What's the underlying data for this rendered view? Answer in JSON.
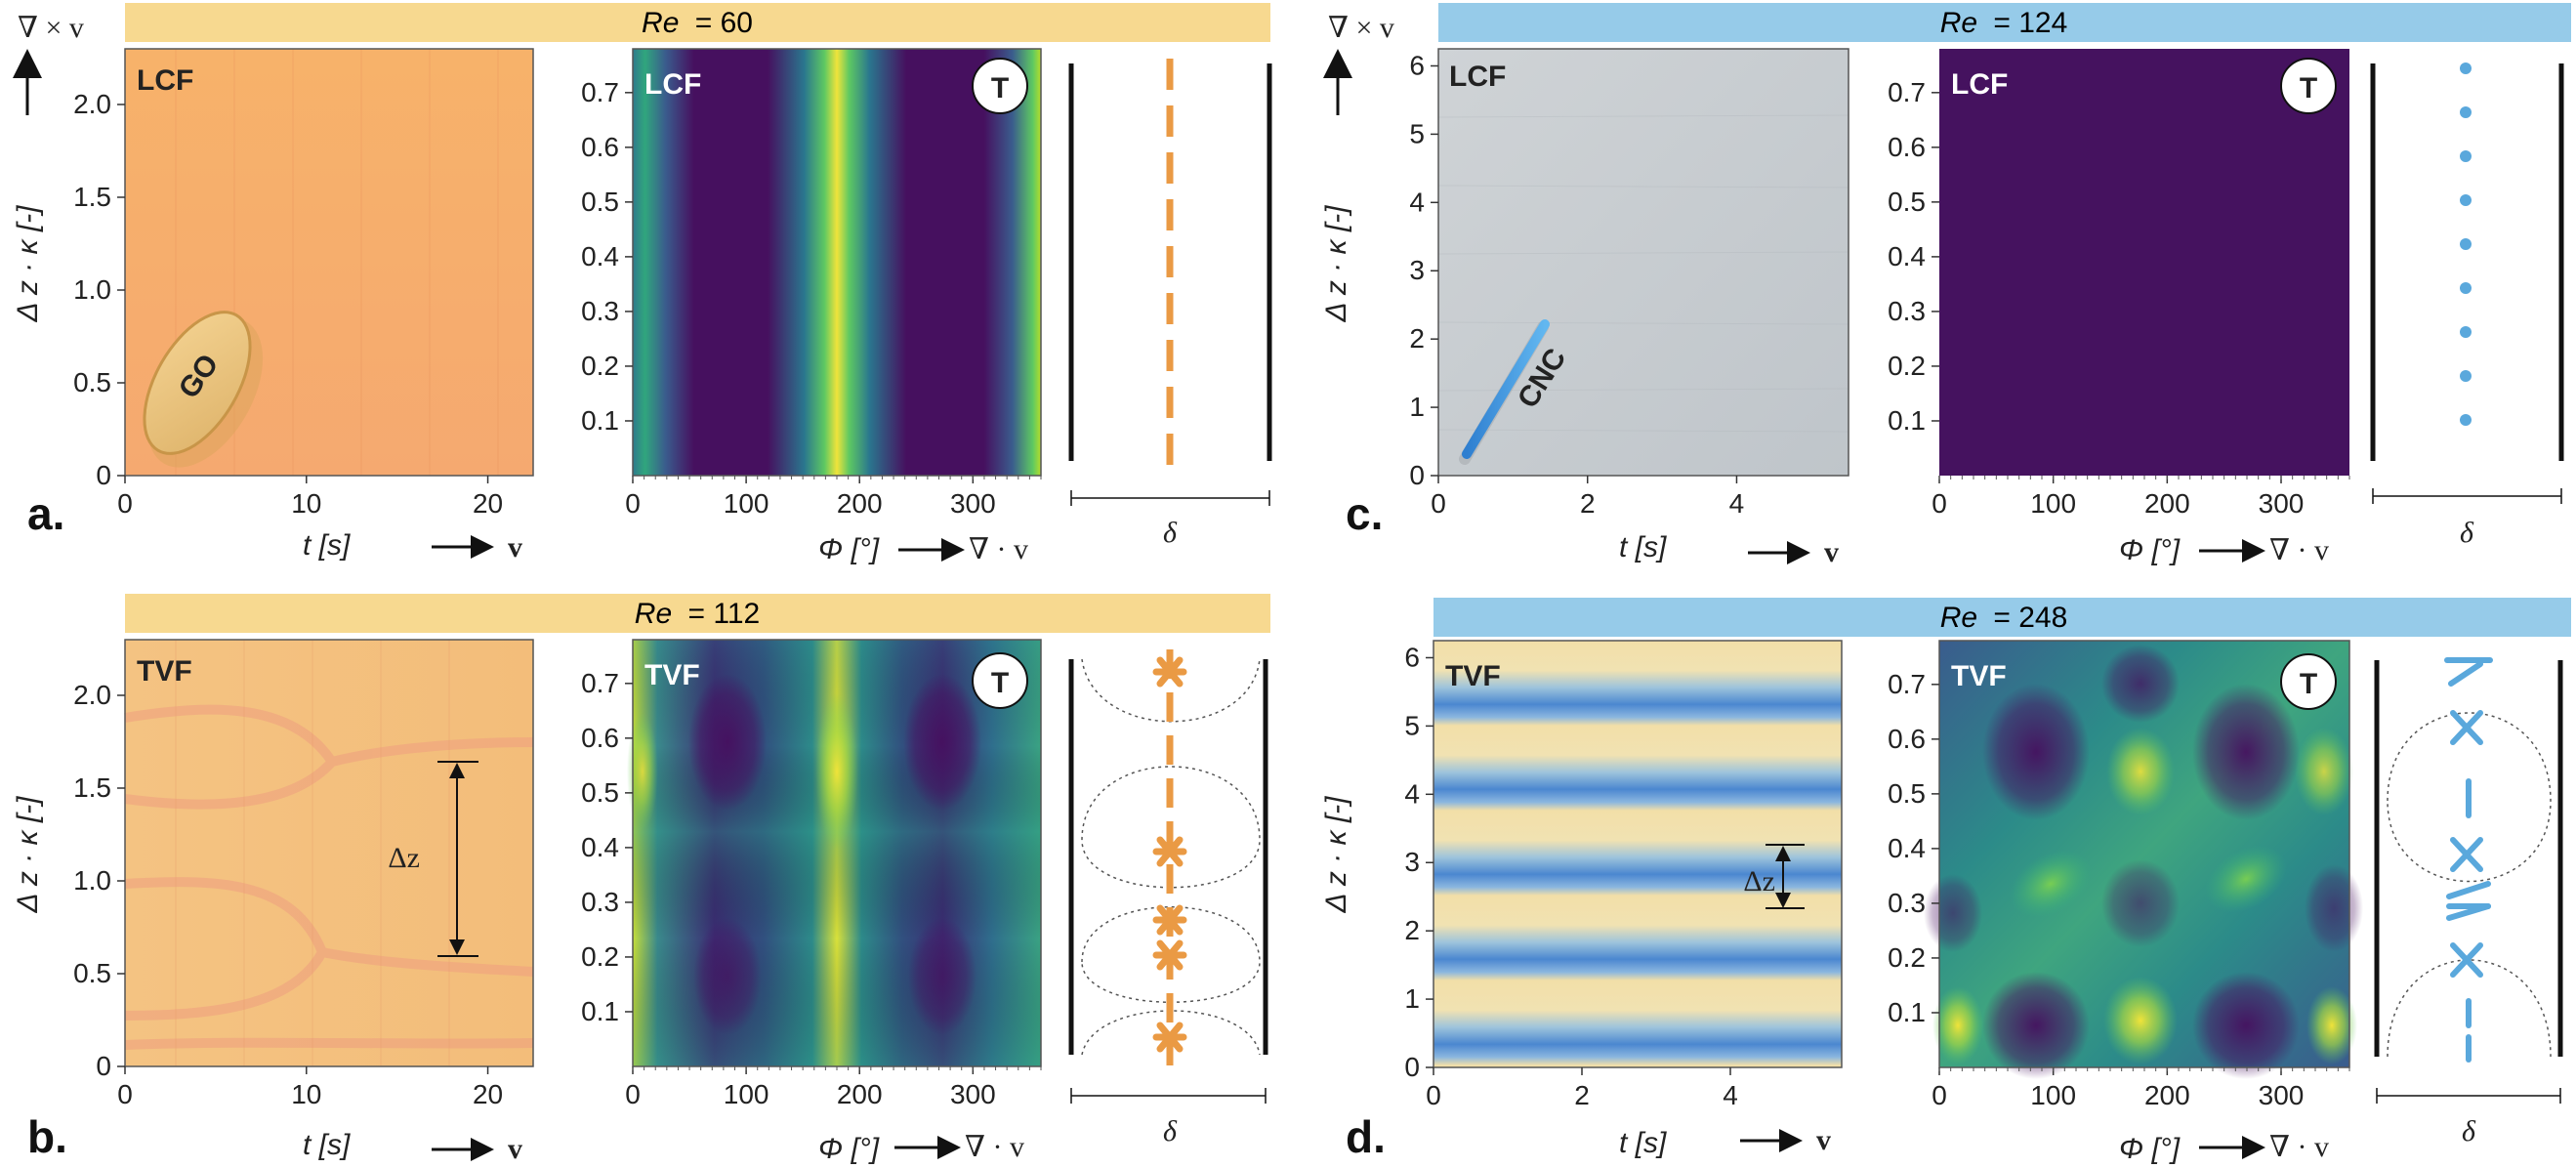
{
  "colors": {
    "orange_bar": "#f7d990",
    "blue_bar": "#96cbe9",
    "orange_accent": "#ea9a44",
    "blue_accent": "#5aa8dc",
    "viridis_dark": "#45125f",
    "viridis_mid": "#2f7a8c",
    "viridis_light": "#f0e33a"
  },
  "labels": {
    "curl": "∇ × v",
    "div": "∇ · v",
    "v": "v",
    "delta": "δ",
    "dz": "Δz",
    "T": "T",
    "ylabel": "Δ z · κ [-]",
    "xlabel_t": "t [s]",
    "xlabel_phi": "Φ [°]",
    "go": "GO",
    "cnc": "CNC"
  },
  "panels": [
    {
      "id": "a",
      "letter": "a.",
      "flow": "LCF",
      "re_label": "Re",
      "re_value": "= 60",
      "photo_y_ticks": [
        "0",
        "0.5",
        "1.0",
        "1.5",
        "2.0"
      ],
      "photo_x_ticks": [
        "0",
        "10",
        "20"
      ],
      "heat_y_ticks": [
        "0.1",
        "0.2",
        "0.3",
        "0.4",
        "0.5",
        "0.6",
        "0.7"
      ],
      "heat_x_ticks": [
        "0",
        "100",
        "200",
        "300"
      ]
    },
    {
      "id": "b",
      "letter": "b.",
      "flow": "TVF",
      "re_label": "Re",
      "re_value": "= 112",
      "photo_y_ticks": [
        "0",
        "0.5",
        "1.0",
        "1.5",
        "2.0"
      ],
      "photo_x_ticks": [
        "0",
        "10",
        "20"
      ],
      "heat_y_ticks": [
        "0.1",
        "0.2",
        "0.3",
        "0.4",
        "0.5",
        "0.6",
        "0.7"
      ],
      "heat_x_ticks": [
        "0",
        "100",
        "200",
        "300"
      ]
    },
    {
      "id": "c",
      "letter": "c.",
      "flow": "LCF",
      "re_label": "Re",
      "re_value": "= 124",
      "photo_y_ticks": [
        "0",
        "1",
        "2",
        "3",
        "4",
        "5",
        "6"
      ],
      "photo_x_ticks": [
        "0",
        "2",
        "4"
      ],
      "heat_y_ticks": [
        "0.1",
        "0.2",
        "0.3",
        "0.4",
        "0.5",
        "0.6",
        "0.7"
      ],
      "heat_x_ticks": [
        "0",
        "100",
        "200",
        "300"
      ]
    },
    {
      "id": "d",
      "letter": "d.",
      "flow": "TVF",
      "re_label": "Re",
      "re_value": "= 248",
      "photo_y_ticks": [
        "0",
        "1",
        "2",
        "3",
        "4",
        "5",
        "6"
      ],
      "photo_x_ticks": [
        "0",
        "2",
        "4"
      ],
      "heat_y_ticks": [
        "0.1",
        "0.2",
        "0.3",
        "0.4",
        "0.5",
        "0.6",
        "0.7"
      ],
      "heat_x_ticks": [
        "0",
        "100",
        "200",
        "300"
      ]
    }
  ]
}
